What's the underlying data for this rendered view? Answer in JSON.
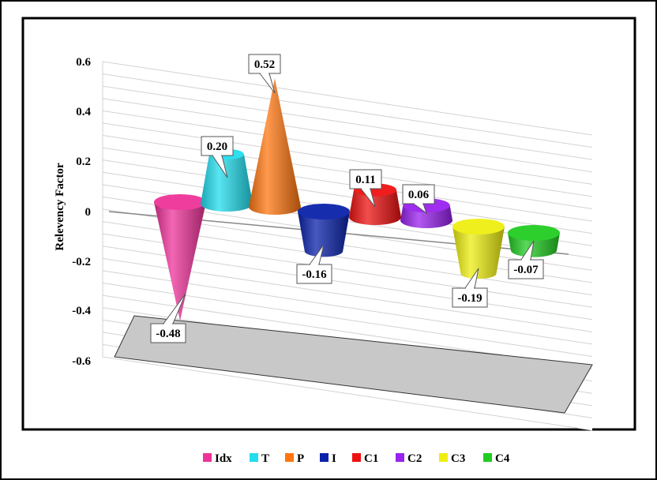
{
  "chart_data": {
    "type": "bar",
    "shape": "cone",
    "three_d": true,
    "title": "",
    "xlabel": "",
    "ylabel": "Relevency Factor",
    "ylim": [
      -0.6,
      0.6
    ],
    "yticks": [
      "0.6",
      "0.4",
      "0.2",
      "0",
      "-0.2",
      "-0.4",
      "-0.6"
    ],
    "categories": [
      "Idx",
      "T",
      "P",
      "I",
      "C1",
      "C2",
      "C3",
      "C4"
    ],
    "values": [
      -0.48,
      0.2,
      0.52,
      -0.16,
      0.11,
      0.06,
      -0.19,
      -0.07
    ],
    "data_labels": [
      "-0.48",
      "0.20",
      "0.52",
      "-0.16",
      "0.11",
      "0.06",
      "-0.19",
      "-0.07"
    ],
    "colors": [
      "#ee3399",
      "#22ddee",
      "#ff7711",
      "#0a22aa",
      "#ee1111",
      "#9922ee",
      "#eeee11",
      "#22cc22"
    ],
    "grid": true,
    "floor_color": "#c8c8c8",
    "legend": {
      "placement": "bottom",
      "entries": [
        "Idx",
        "T",
        "P",
        "I",
        "C1",
        "C2",
        "C3",
        "C4"
      ]
    }
  }
}
